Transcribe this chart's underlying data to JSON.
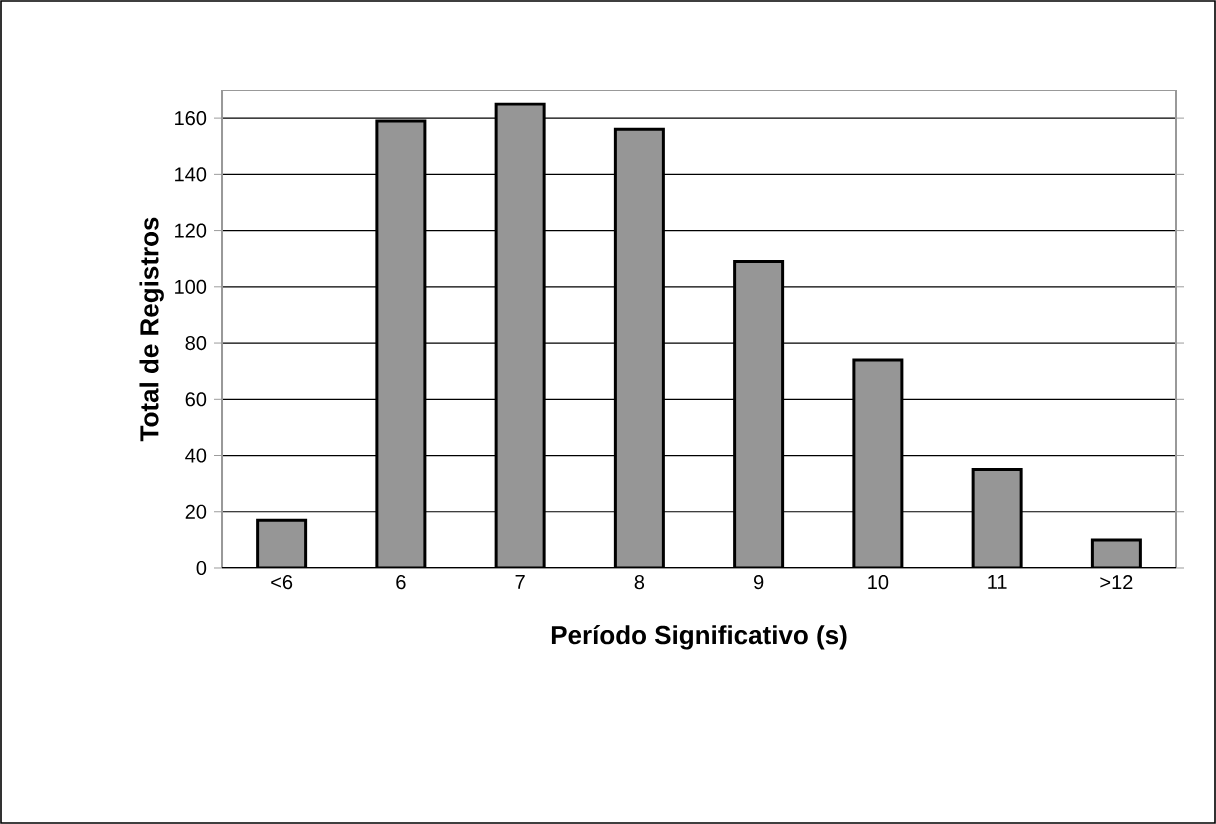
{
  "chart_data": {
    "type": "bar",
    "xlabel": "Período Significativo (s)",
    "ylabel": "Total de Registros",
    "categories": [
      "<6",
      "6",
      "7",
      "8",
      "9",
      "10",
      "11",
      ">12"
    ],
    "values": [
      17,
      159,
      165,
      156,
      109,
      74,
      35,
      10
    ],
    "color": "#969696",
    "ylim": [
      0,
      170
    ],
    "yticks": [
      0,
      20,
      40,
      60,
      80,
      100,
      120,
      140,
      160
    ],
    "grid": "y"
  }
}
